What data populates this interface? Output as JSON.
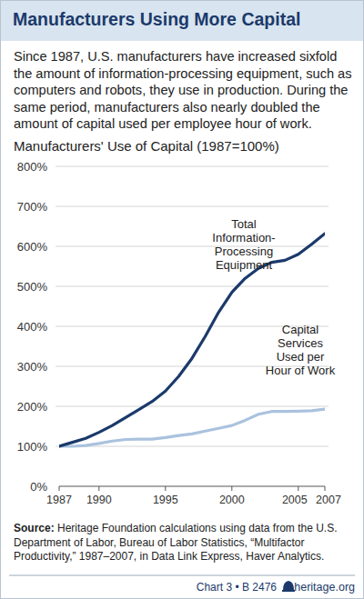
{
  "chart_data": {
    "type": "line",
    "title": "Manufacturers Using More Capital",
    "subtitle": "Since 1987, U.S. manufacturers have increased sixfold the amount of information-processing equipment, such as computers and robots, they use in production. During the same period, manufacturers also nearly doubled the amount of capital used per employee hour of work.",
    "plot_title": "Manufacturers' Use of Capital (1987=100%)",
    "x": [
      1987,
      1988,
      1989,
      1990,
      1991,
      1992,
      1993,
      1994,
      1995,
      1996,
      1997,
      1998,
      1999,
      2000,
      2001,
      2002,
      2003,
      2004,
      2005,
      2006,
      2007
    ],
    "series": [
      {
        "name": "Total\nInformation-\nProcessing\nEquipment",
        "color": "#1b3a6b",
        "values": [
          100,
          110,
          120,
          135,
          152,
          172,
          192,
          212,
          238,
          275,
          320,
          375,
          435,
          485,
          520,
          545,
          560,
          565,
          580,
          605,
          632
        ]
      },
      {
        "name": "Capital\nServices\nUsed per\nHour of Work",
        "color": "#a9c2de",
        "values": [
          100,
          100,
          102,
          107,
          113,
          117,
          118,
          118,
          122,
          127,
          131,
          138,
          145,
          152,
          165,
          180,
          187,
          187,
          188,
          189,
          193
        ]
      }
    ],
    "xlim": [
      1987,
      2007
    ],
    "xticks": [
      1987,
      1990,
      1995,
      2000,
      2005,
      2007
    ],
    "ylim": [
      0,
      800
    ],
    "yticks": [
      {
        "value": 0,
        "label": "0%"
      },
      {
        "value": 100,
        "label": "100%"
      },
      {
        "value": 200,
        "label": "200%"
      },
      {
        "value": 300,
        "label": "300%"
      },
      {
        "value": 400,
        "label": "400%"
      },
      {
        "value": 500,
        "label": "500%"
      },
      {
        "value": 600,
        "label": "600%"
      },
      {
        "value": 700,
        "label": "700%"
      },
      {
        "value": 800,
        "label": "800%"
      }
    ],
    "grid": true,
    "source_label": "Source:",
    "source": "Heritage Foundation calculations using data from the U.S. Department of Labor, Bureau of Labor Statistics, “Multifactor Productivity,” 1987–2007, in Data Link Express, Haver Analytics.",
    "footer": "Chart 3 • B 2476",
    "site": "heritage.org"
  }
}
